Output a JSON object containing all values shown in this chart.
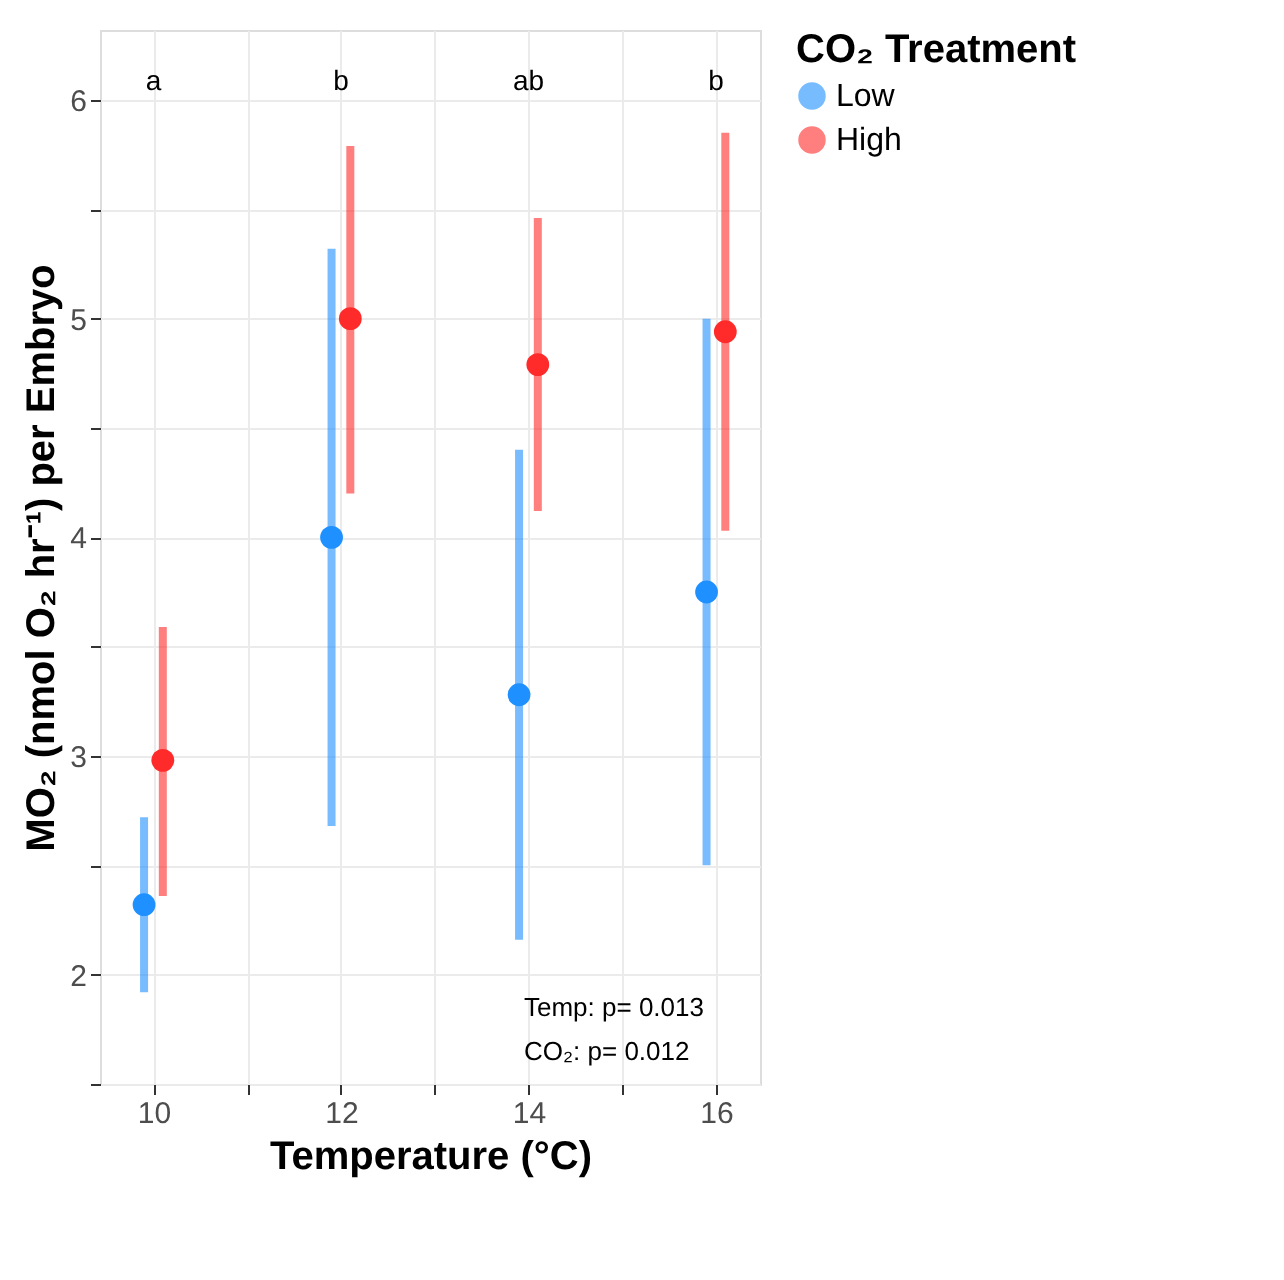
{
  "chart_data": {
    "type": "scatter",
    "xlabel": "Temperature (°C)",
    "ylabel": "MO₂ (nmol O₂ hr⁻¹) per Embryo",
    "legend_title": "CO₂ Treatment",
    "xlim": [
      9.43,
      16.47
    ],
    "xticks": [
      {
        "value": 10,
        "label": "10"
      },
      {
        "value": 11,
        "label": null
      },
      {
        "value": 12,
        "label": "12"
      },
      {
        "value": 13,
        "label": null
      },
      {
        "value": 14,
        "label": "14"
      },
      {
        "value": 15,
        "label": null
      },
      {
        "value": 16,
        "label": "16"
      }
    ],
    "ylim": [
      1.5,
      6.32
    ],
    "yticks": [
      {
        "value": 1.5,
        "label": null
      },
      2,
      {
        "value": 2.5,
        "label": null
      },
      3,
      {
        "value": 3.5,
        "label": null
      },
      4,
      {
        "value": 4.5,
        "label": null
      },
      5,
      {
        "value": 5.5,
        "label": null
      },
      6
    ],
    "grid": true,
    "legend": "right",
    "marker": "circle",
    "series": [
      {
        "name": "Low",
        "color": "#1e90ff",
        "x": [
          9.9,
          11.9,
          13.9,
          15.9
        ],
        "values": [
          2.32,
          4.0,
          3.28,
          3.75
        ],
        "errors": [
          [
            1.92,
            2.72
          ],
          [
            2.68,
            5.32
          ],
          [
            2.16,
            4.4
          ],
          [
            2.5,
            5.0
          ]
        ]
      },
      {
        "name": "High",
        "color": "#ff2a2a",
        "x": [
          10.1,
          12.1,
          14.1,
          16.1
        ],
        "values": [
          2.98,
          5.0,
          4.79,
          4.94
        ],
        "errors": [
          [
            2.36,
            3.59
          ],
          [
            4.2,
            5.79
          ],
          [
            4.12,
            5.46
          ],
          [
            4.03,
            5.85
          ]
        ]
      }
    ],
    "annotations": [
      "a",
      "b",
      "ab",
      "b",
      "Temp: p= 0.013",
      "CO₂: p= 0.012"
    ]
  }
}
